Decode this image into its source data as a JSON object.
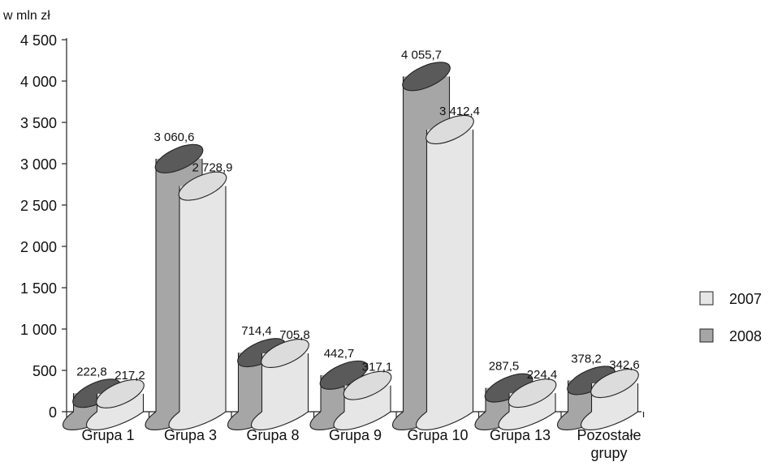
{
  "chart_data": {
    "type": "bar",
    "unit_label": "w mln zł",
    "categories": [
      "Grupa 1",
      "Grupa 3",
      "Grupa 8",
      "Grupa 9",
      "Grupa 10",
      "Grupa 13",
      "Pozostałe grupy"
    ],
    "series": [
      {
        "name": "2008",
        "values": [
          222.8,
          3060.6,
          714.4,
          442.7,
          4055.7,
          287.5,
          378.2
        ],
        "labels": [
          "222,8",
          "3 060,6",
          "714,4",
          "442,7",
          "4 055,7",
          "287,5",
          "378,2"
        ],
        "color": "#a6a6a6"
      },
      {
        "name": "2007",
        "values": [
          217.2,
          2728.9,
          705.8,
          317.1,
          3412.4,
          224.4,
          342.6
        ],
        "labels": [
          "217,2",
          "2 728,9",
          "705,8",
          "317,1",
          "3 412,4",
          "224,4",
          "342,6"
        ],
        "color": "#e6e6e6"
      }
    ],
    "legend": [
      "2007",
      "2008"
    ],
    "legend_position": "right",
    "ylim": [
      0,
      4500
    ],
    "yticks": [
      0,
      500,
      1000,
      1500,
      2000,
      2500,
      3000,
      3500,
      4000,
      4500
    ],
    "ytick_labels": [
      "0",
      "500",
      "1 000",
      "1 500",
      "2 000",
      "2 500",
      "3 000",
      "3 500",
      "4 000",
      "4 500"
    ],
    "grid": false,
    "style": "3d-cylinders"
  }
}
